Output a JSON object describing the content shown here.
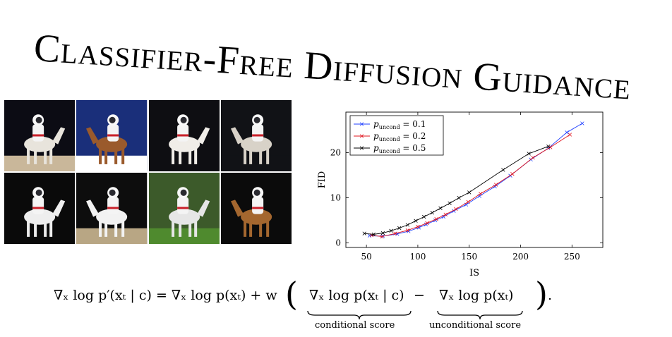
{
  "title": "Classifier-Free Diffusion Guidance",
  "images": [
    {
      "name": "astronaut-horse-1",
      "sky": "#0c0c14",
      "ground": "#c9b79a",
      "horse": "#e8e4dc"
    },
    {
      "name": "astronaut-horse-2",
      "sky": "#1a2f7a",
      "ground": "#ffffff",
      "horse": "#9a5a2c"
    },
    {
      "name": "astronaut-horse-3",
      "sky": "#0e0e12",
      "ground": "#0e0e12",
      "horse": "#f0ede8"
    },
    {
      "name": "astronaut-horse-4",
      "sky": "#111216",
      "ground": "#111216",
      "horse": "#d8d2c8"
    },
    {
      "name": "astronaut-horse-5",
      "sky": "#0a0a0a",
      "ground": "#0a0a0a",
      "horse": "#eeeeee"
    },
    {
      "name": "astronaut-horse-6",
      "sky": "#0d0d0d",
      "ground": "#b8a684",
      "horse": "#f2f2f2"
    },
    {
      "name": "astronaut-horse-7",
      "sky": "#3c5a2a",
      "ground": "#4f8a2e",
      "horse": "#e6e6e6"
    },
    {
      "name": "astronaut-horse-8",
      "sky": "#0b0b0b",
      "ground": "#0b0b0b",
      "horse": "#a4672f"
    }
  ],
  "chart_data": {
    "type": "line",
    "xlabel": "IS",
    "ylabel": "FID",
    "xlim": [
      30,
      280
    ],
    "ylim": [
      -1,
      29
    ],
    "xticks": [
      50,
      100,
      150,
      200,
      250
    ],
    "yticks": [
      0,
      10,
      20
    ],
    "grid": false,
    "legend_position": "top-left",
    "series": [
      {
        "name_main": "p",
        "name_sub": "uncond",
        "name_val": " = 0.1",
        "color": "#1f3fff",
        "x": [
          53,
          66,
          80,
          91,
          101,
          108,
          117,
          125,
          135,
          147,
          160,
          175,
          190,
          210,
          227,
          245,
          260
        ],
        "y": [
          1.6,
          1.5,
          2.0,
          2.6,
          3.4,
          4.1,
          5.0,
          5.8,
          7.1,
          8.5,
          10.4,
          12.5,
          14.9,
          18.5,
          21.0,
          24.5,
          26.5
        ]
      },
      {
        "name_main": "p",
        "name_sub": "uncond",
        "name_val": " = 0.2",
        "color": "#e0141e",
        "x": [
          55,
          65,
          78,
          90,
          100,
          109,
          118,
          127,
          137,
          149,
          161,
          176,
          192,
          212,
          229,
          248
        ],
        "y": [
          1.7,
          1.4,
          2.1,
          2.8,
          3.6,
          4.4,
          5.3,
          6.3,
          7.5,
          9.1,
          10.9,
          12.9,
          15.3,
          18.9,
          21.2,
          24.0
        ]
      },
      {
        "name_main": "p",
        "name_sub": "uncond",
        "name_val": " = 0.5",
        "color": "#000000",
        "x": [
          48,
          57,
          66,
          74,
          82,
          90,
          98,
          106,
          114,
          122,
          131,
          140,
          150,
          183,
          208,
          227
        ],
        "y": [
          2.1,
          1.9,
          2.2,
          2.7,
          3.3,
          4.0,
          4.9,
          5.8,
          6.7,
          7.7,
          8.8,
          10.0,
          11.2,
          16.2,
          19.8,
          21.4
        ]
      }
    ]
  },
  "equation": {
    "lhs": "∇ₓ log p′(xₜ | c) = ∇ₓ log p(xₜ) + w",
    "term1": "∇ₓ log p(xₜ | c)",
    "minus": "−",
    "term2": "∇ₓ log p(xₜ)",
    "end": ".",
    "label1": "conditional score",
    "label2": "unconditional score"
  }
}
